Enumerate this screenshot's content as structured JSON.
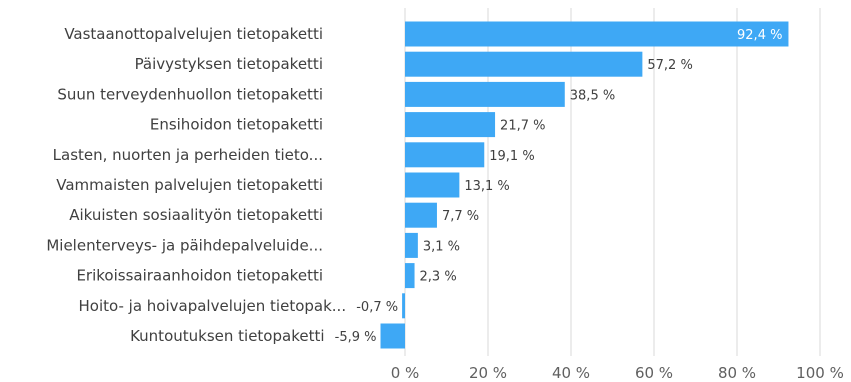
{
  "chart_data": {
    "type": "bar",
    "orientation": "horizontal",
    "categories": [
      "Vastaanottopalvelujen tietopaketti",
      "Päivystyksen tietopaketti",
      "Suun terveydenhuollon tietopaketti",
      "Ensihoidon tietopaketti",
      "Lasten, nuorten ja perheiden tieto...",
      "Vammaisten palvelujen tietopaketti",
      "Aikuisten sosiaalityön tietopaketti",
      "Mielenterveys- ja päihdepalveluide...",
      "Erikoissairaanhoidon tietopaketti",
      "Hoito- ja hoivapalvelujen tietopak...",
      "Kuntoutuksen tietopaketti"
    ],
    "values": [
      92.4,
      57.2,
      38.5,
      21.7,
      19.1,
      13.1,
      7.7,
      3.1,
      2.3,
      -0.7,
      -5.9
    ],
    "value_labels": [
      "92,4 %",
      "57,2 %",
      "38,5 %",
      "21,7 %",
      "19,1 %",
      "13,1 %",
      "7,7 %",
      "3,1 %",
      "2,3 %",
      "-0,7 %",
      "-5,9 %"
    ],
    "xlim": [
      0,
      100
    ],
    "xticks": [
      0,
      20,
      40,
      60,
      80,
      100
    ],
    "xtick_labels": [
      "0 %",
      "20 %",
      "40 %",
      "60 %",
      "80 %",
      "100 %"
    ],
    "grid": "vertical",
    "bar_color": "#3ea8f5",
    "title": "",
    "xlabel": "",
    "ylabel": ""
  }
}
